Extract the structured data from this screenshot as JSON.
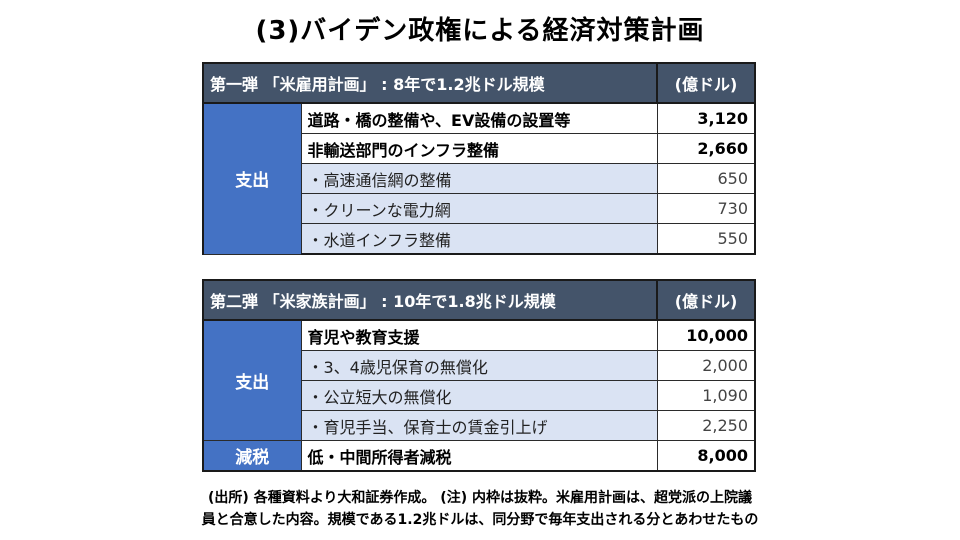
{
  "title": "(3)バイデン政権による経済対策計画",
  "table1": {
    "header": "第一弾 「米雇用計画」 : 8年で1.2兆ドル規模",
    "unit": "(億ドル)",
    "side_label": "支出",
    "rows": [
      {
        "item": "道路・橋の整備や、EV設備の設置等",
        "value": "3,120"
      },
      {
        "item": "非輸送部門のインフラ整備",
        "value": "2,660"
      },
      {
        "item": "・高速通信網の整備",
        "value": "650"
      },
      {
        "item": "・クリーンな電力網",
        "value": "730"
      },
      {
        "item": "・水道インフラ整備",
        "value": "550"
      }
    ]
  },
  "table2": {
    "header": "第二弾 「米家族計画」 : 10年で1.8兆ドル規模",
    "unit": "(億ドル)",
    "side_label": "支出",
    "rows": [
      {
        "item": "育児や教育支援",
        "value": "10,000"
      },
      {
        "item": "・3、4歳児保育の無償化",
        "value": "2,000"
      },
      {
        "item": "・公立短大の無償化",
        "value": "1,090"
      },
      {
        "item": "・育児手当、保育士の賃金引上げ",
        "value": "2,250"
      }
    ],
    "tax_label": "減税",
    "tax_item": "低・中間所得者減税",
    "tax_value": "8,000"
  },
  "note": {
    "line1": "(出所) 各種資料より大和証券作成。 (注) 内枠は抜粋。米雇用計画は、超党派の上院議",
    "line2": "員と合意した内容。規模である1.2兆ドルは、同分野で毎年支出される分とあわせたもの"
  }
}
